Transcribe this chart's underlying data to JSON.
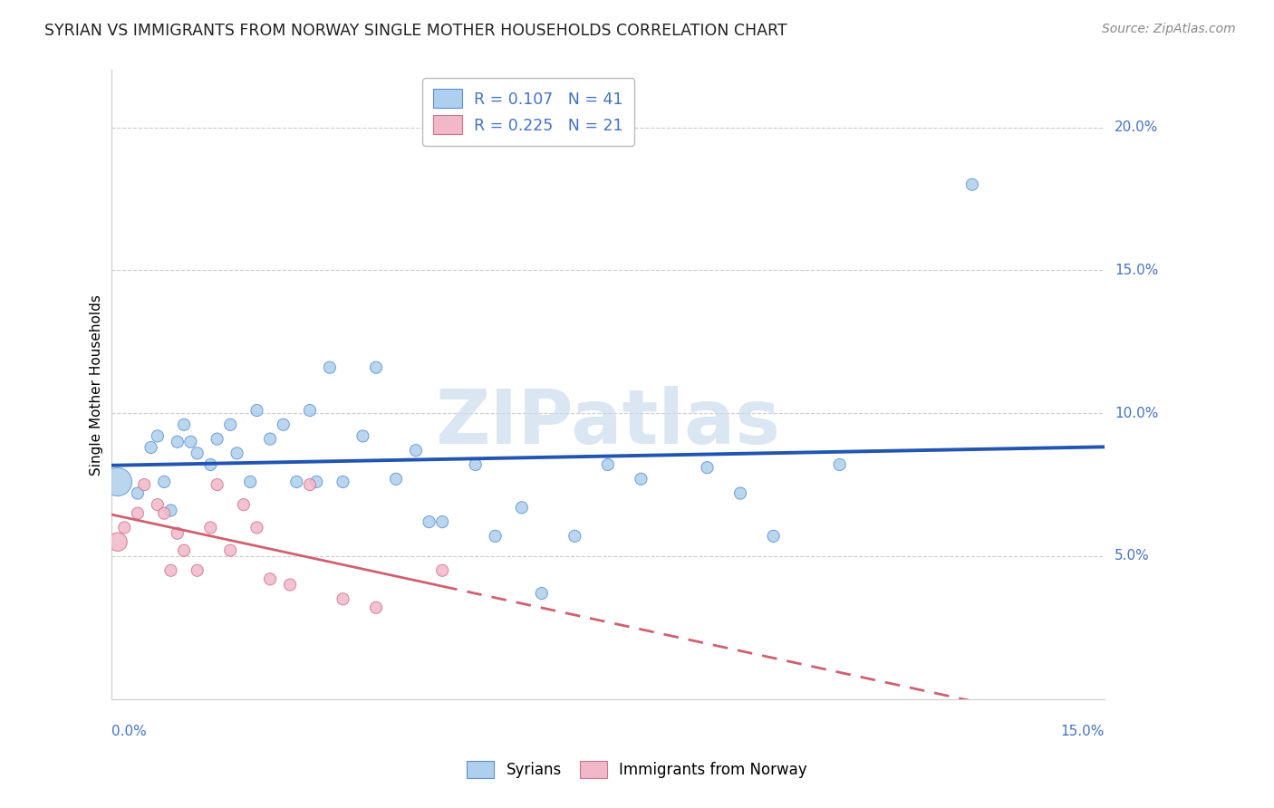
{
  "title": "SYRIAN VS IMMIGRANTS FROM NORWAY SINGLE MOTHER HOUSEHOLDS CORRELATION CHART",
  "source": "Source: ZipAtlas.com",
  "ylabel": "Single Mother Households",
  "r1": "0.107",
  "n1": "41",
  "r2": "0.225",
  "n2": "21",
  "legend_label1": "Syrians",
  "legend_label2": "Immigrants from Norway",
  "color_blue_fill": "#aecfed",
  "color_blue_edge": "#5a8fd0",
  "color_blue_line": "#2255b0",
  "color_pink_fill": "#f0b8c8",
  "color_pink_edge": "#d07090",
  "color_pink_line": "#d06070",
  "color_blue_text": "#4472c4",
  "color_axis_text": "#4472c4",
  "color_grid": "#cccccc",
  "color_bg": "#ffffff",
  "xlim": [
    0.0,
    0.15
  ],
  "ylim": [
    0.0,
    0.22
  ],
  "yticks": [
    0.05,
    0.1,
    0.15,
    0.2
  ],
  "ytick_labels": [
    "5.0%",
    "10.0%",
    "15.0%",
    "20.0%"
  ],
  "syrians_x": [
    0.001,
    0.004,
    0.006,
    0.007,
    0.008,
    0.009,
    0.01,
    0.011,
    0.012,
    0.013,
    0.015,
    0.016,
    0.018,
    0.019,
    0.021,
    0.022,
    0.024,
    0.026,
    0.028,
    0.03,
    0.031,
    0.033,
    0.035,
    0.038,
    0.04,
    0.043,
    0.046,
    0.048,
    0.05,
    0.055,
    0.058,
    0.062,
    0.065,
    0.07,
    0.075,
    0.08,
    0.09,
    0.095,
    0.1,
    0.11,
    0.13
  ],
  "syrians_y": [
    0.076,
    0.072,
    0.088,
    0.092,
    0.076,
    0.066,
    0.09,
    0.096,
    0.09,
    0.086,
    0.082,
    0.091,
    0.096,
    0.086,
    0.076,
    0.101,
    0.091,
    0.096,
    0.076,
    0.101,
    0.076,
    0.116,
    0.076,
    0.092,
    0.116,
    0.077,
    0.087,
    0.062,
    0.062,
    0.082,
    0.057,
    0.067,
    0.037,
    0.057,
    0.082,
    0.077,
    0.081,
    0.072,
    0.057,
    0.082,
    0.18
  ],
  "syrians_size": [
    500,
    90,
    90,
    90,
    90,
    90,
    90,
    90,
    90,
    90,
    90,
    90,
    90,
    90,
    90,
    90,
    90,
    90,
    90,
    90,
    90,
    90,
    90,
    90,
    90,
    90,
    90,
    90,
    90,
    90,
    90,
    90,
    90,
    90,
    90,
    90,
    90,
    90,
    90,
    90,
    90
  ],
  "norway_x": [
    0.001,
    0.002,
    0.004,
    0.005,
    0.007,
    0.008,
    0.009,
    0.01,
    0.011,
    0.013,
    0.015,
    0.016,
    0.018,
    0.02,
    0.022,
    0.024,
    0.027,
    0.03,
    0.035,
    0.04,
    0.05
  ],
  "norway_y": [
    0.055,
    0.06,
    0.065,
    0.075,
    0.068,
    0.065,
    0.045,
    0.058,
    0.052,
    0.045,
    0.06,
    0.075,
    0.052,
    0.068,
    0.06,
    0.042,
    0.04,
    0.075,
    0.035,
    0.032,
    0.045
  ],
  "norway_size": [
    220,
    90,
    90,
    90,
    90,
    90,
    90,
    90,
    90,
    90,
    90,
    90,
    90,
    90,
    90,
    90,
    90,
    90,
    90,
    90,
    90
  ],
  "watermark_text": "ZIPatlas",
  "watermark_color": "#ccdcee"
}
